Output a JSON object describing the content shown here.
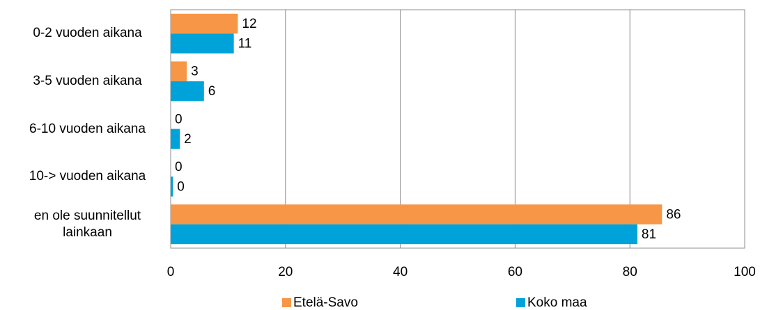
{
  "chart_data": {
    "type": "hbar",
    "categories": [
      "0-2 vuoden aikana",
      "3-5 vuoden aikana",
      "6-10 vuoden aikana",
      "10-> vuoden aikana",
      "en ole suunnitellut lainkaan"
    ],
    "series": [
      {
        "name": "Etelä-Savo",
        "color": "#f79646",
        "values": [
          11.7,
          2.8,
          0,
          0,
          85.6
        ],
        "value_labels": [
          "12",
          "3",
          "0",
          "0",
          "86"
        ]
      },
      {
        "name": "Koko maa",
        "color": "#00a2da",
        "values": [
          11.0,
          5.8,
          1.6,
          0.4,
          81.3
        ],
        "value_labels": [
          "11",
          "6",
          "2",
          "0",
          "81"
        ]
      }
    ],
    "xlim": [
      0,
      100
    ],
    "xticks": [
      0,
      20,
      40,
      60,
      80,
      100
    ],
    "grid": true,
    "legend": "bottom"
  }
}
